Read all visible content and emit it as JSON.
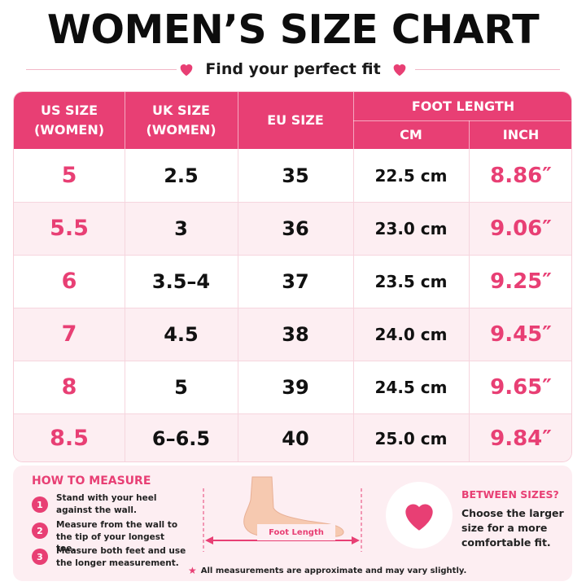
{
  "title": "WOMEN’S SIZE CHART",
  "subtitle": "Find your perfect fit",
  "colors": {
    "accent": "#e83f74",
    "row_tint": "#fdeef2"
  },
  "table": {
    "headers": {
      "us": "US SIZE (WOMEN)",
      "uk": "UK SIZE (WOMEN)",
      "eu": "EU SIZE",
      "foot_length": "FOOT LENGTH",
      "cm": "CM",
      "inch": "INCH"
    },
    "rows": [
      {
        "us": "5",
        "uk": "2.5",
        "eu": "35",
        "cm": "22.5 cm",
        "inch": "8.86″"
      },
      {
        "us": "5.5",
        "uk": "3",
        "eu": "36",
        "cm": "23.0 cm",
        "inch": "9.06″"
      },
      {
        "us": "6",
        "uk": "3.5–4",
        "eu": "37",
        "cm": "23.5 cm",
        "inch": "9.25″"
      },
      {
        "us": "7",
        "uk": "4.5",
        "eu": "38",
        "cm": "24.0 cm",
        "inch": "9.45″"
      },
      {
        "us": "8",
        "uk": "5",
        "eu": "39",
        "cm": "24.5 cm",
        "inch": "9.65″"
      },
      {
        "us": "8.5",
        "uk": "6–6.5",
        "eu": "40",
        "cm": "25.0 cm",
        "inch": "9.84″"
      }
    ]
  },
  "how_to_measure": {
    "title": "HOW TO MEASURE",
    "steps": [
      {
        "num": "1",
        "text": "Stand with your heel against the wall."
      },
      {
        "num": "2",
        "text": "Measure from the wall to the tip of your longest toe."
      },
      {
        "num": "3",
        "text": "Measure both feet and use the longer measurement."
      }
    ]
  },
  "diagram": {
    "label": "Foot Length"
  },
  "between_sizes": {
    "title": "BETWEEN SIZES?",
    "text": "Choose the larger size for a more comfortable fit."
  },
  "note": "All measurements are approximate and may vary slightly."
}
